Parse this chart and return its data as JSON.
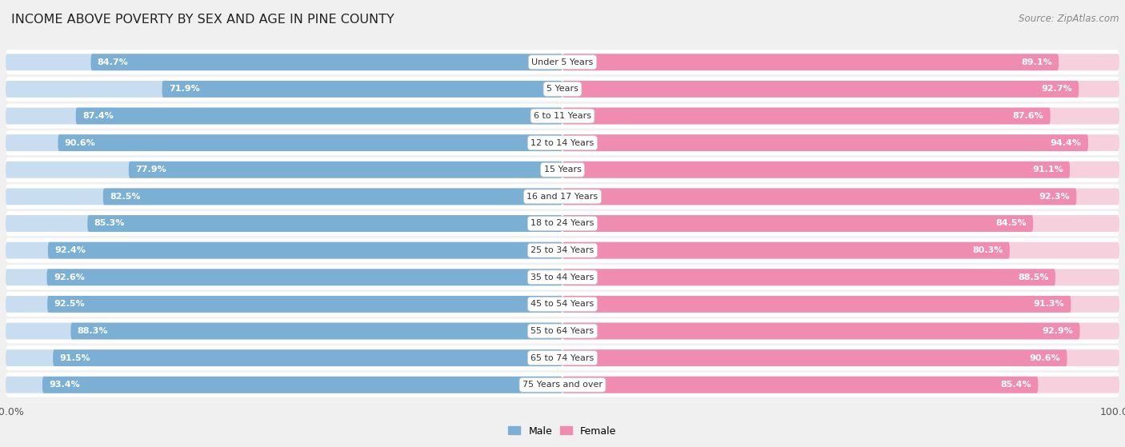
{
  "title": "INCOME ABOVE POVERTY BY SEX AND AGE IN PINE COUNTY",
  "source": "Source: ZipAtlas.com",
  "categories": [
    "Under 5 Years",
    "5 Years",
    "6 to 11 Years",
    "12 to 14 Years",
    "15 Years",
    "16 and 17 Years",
    "18 to 24 Years",
    "25 to 34 Years",
    "35 to 44 Years",
    "45 to 54 Years",
    "55 to 64 Years",
    "65 to 74 Years",
    "75 Years and over"
  ],
  "male_values": [
    84.7,
    71.9,
    87.4,
    90.6,
    77.9,
    82.5,
    85.3,
    92.4,
    92.6,
    92.5,
    88.3,
    91.5,
    93.4
  ],
  "female_values": [
    89.1,
    92.7,
    87.6,
    94.4,
    91.1,
    92.3,
    84.5,
    80.3,
    88.5,
    91.3,
    92.9,
    90.6,
    85.4
  ],
  "male_color": "#7bafd4",
  "female_color": "#f08cb0",
  "male_label": "Male",
  "female_label": "Female",
  "bg_color": "#f0f0f0",
  "x_max": 100.0,
  "title_fontsize": 11.5,
  "label_fontsize": 8.0,
  "tick_fontsize": 9,
  "source_fontsize": 8.5
}
